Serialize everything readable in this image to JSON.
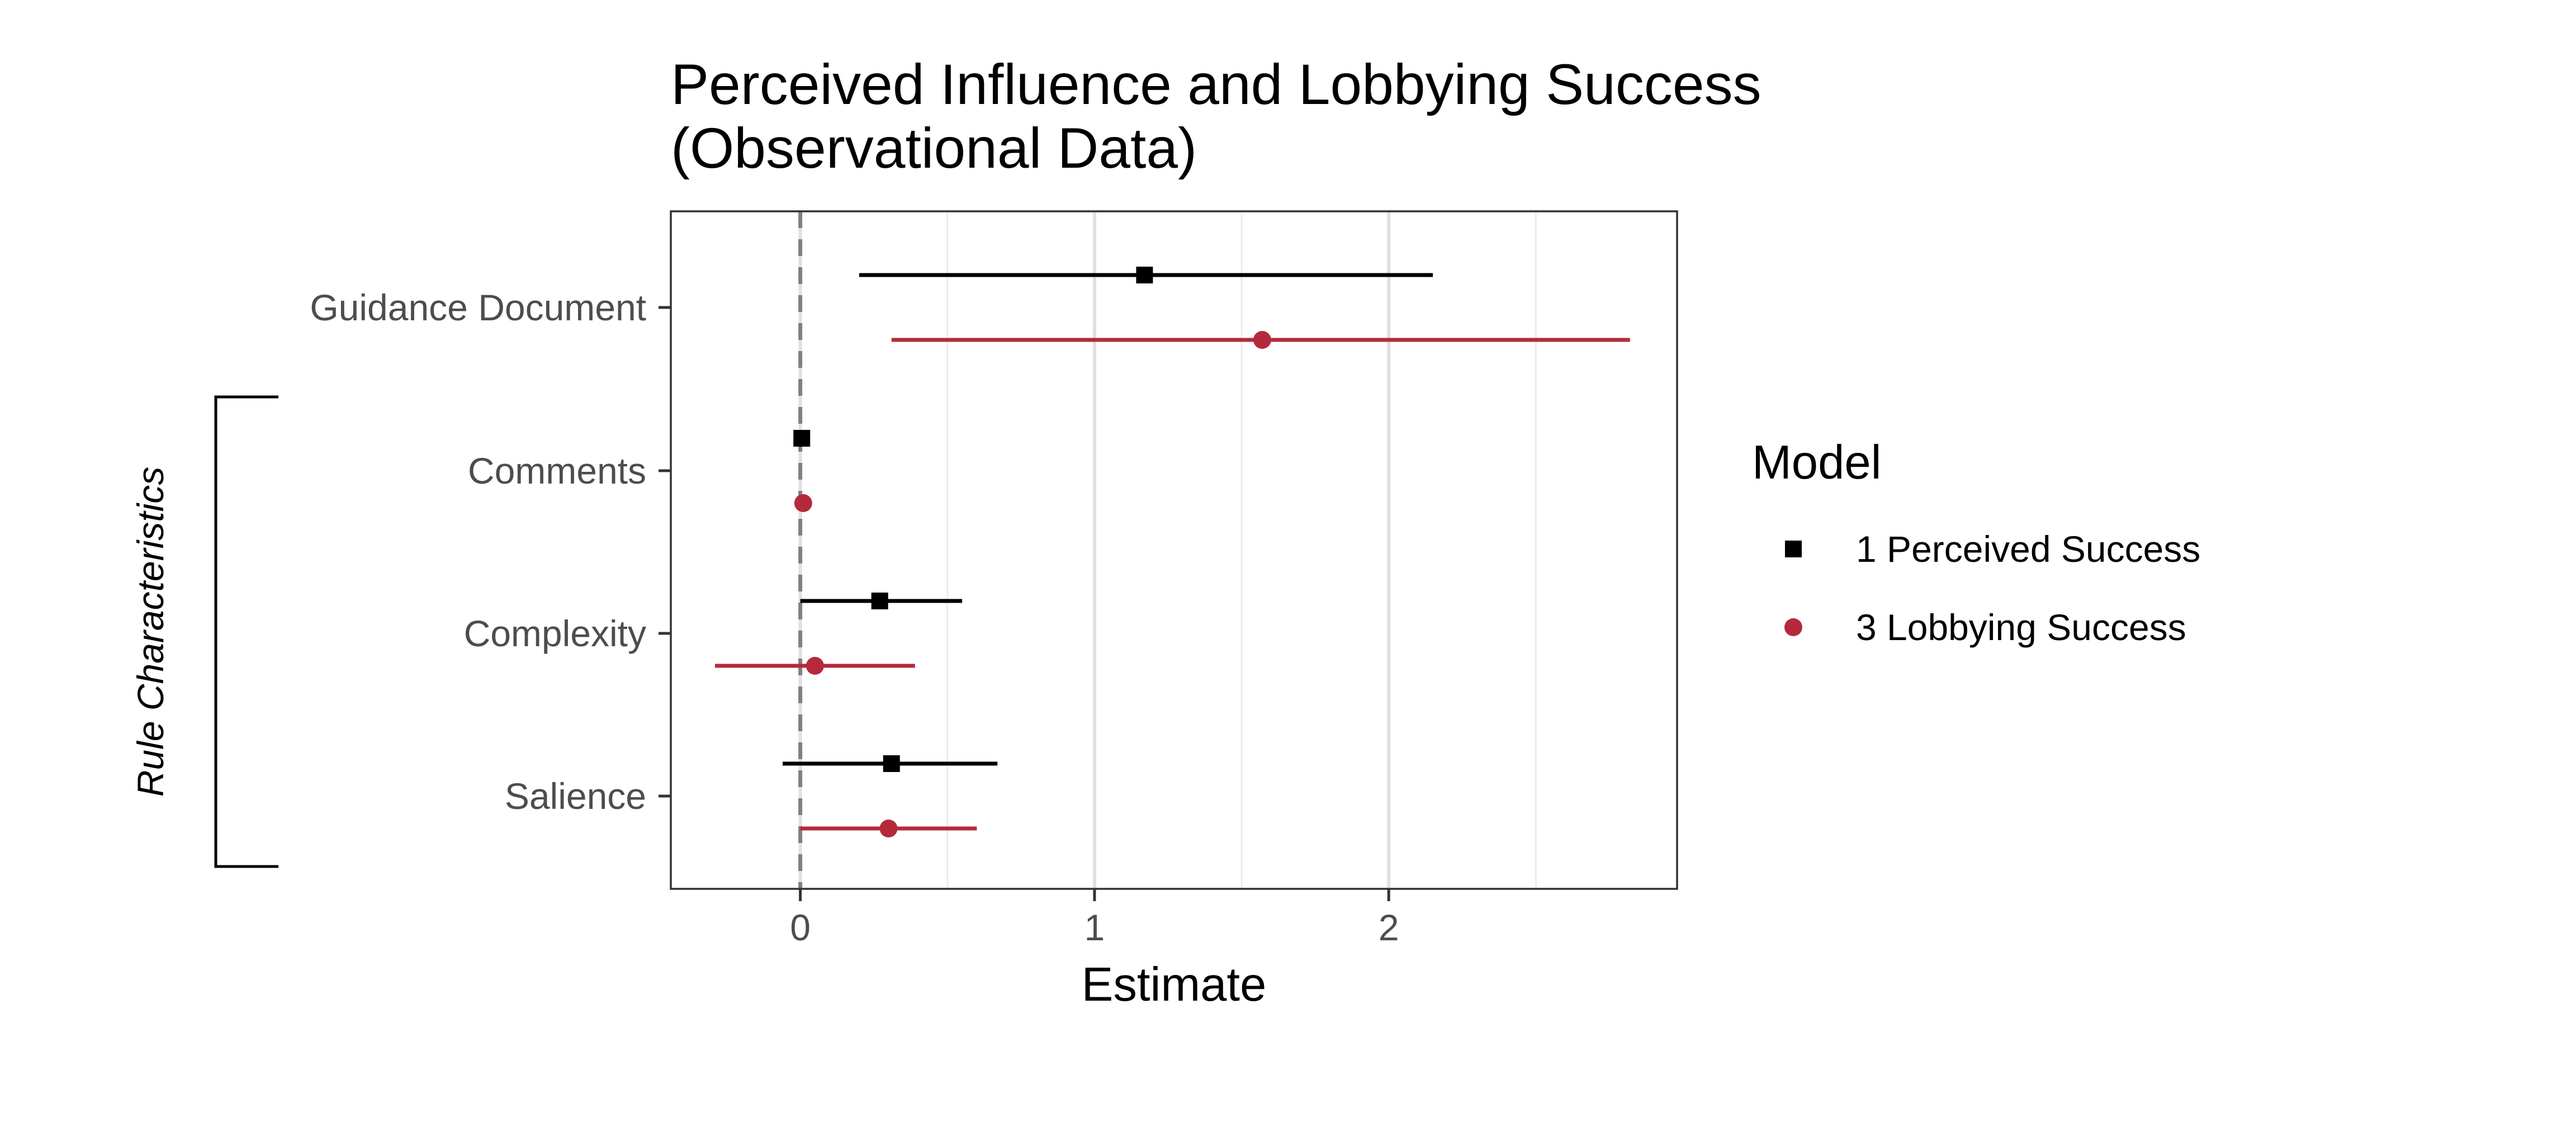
{
  "chart_data": {
    "type": "coefficient-plot",
    "title": "Perceived Influence and Lobbying Success",
    "subtitle": "(Observational Data)",
    "xlabel": "Estimate",
    "ylabel": "",
    "xlim": [
      -0.44,
      2.98
    ],
    "x_ticks": [
      0,
      1,
      2
    ],
    "x_tick_labels": [
      "0",
      "1",
      "2"
    ],
    "reference_line": 0,
    "grid": true,
    "categories": [
      "Guidance Document",
      "Comments",
      "Complexity",
      "Salience"
    ],
    "category_group": {
      "label": "Rule Characteristics",
      "members": [
        "Comments",
        "Complexity",
        "Salience"
      ]
    },
    "legend": {
      "title": "Model",
      "position": "right"
    },
    "series": [
      {
        "name": "1 Perceived Success",
        "color": "#000000",
        "marker": "square",
        "estimates": [
          1.17,
          0.005,
          0.27,
          0.31
        ],
        "lower": [
          0.2,
          0.0,
          0.0,
          -0.06
        ],
        "upper": [
          2.15,
          0.01,
          0.55,
          0.67
        ]
      },
      {
        "name": "3 Lobbying Success",
        "color": "#b52a3a",
        "marker": "circle",
        "estimates": [
          1.57,
          0.01,
          0.05,
          0.3
        ],
        "lower": [
          0.31,
          0.005,
          -0.29,
          0.0
        ],
        "upper": [
          2.82,
          0.015,
          0.39,
          0.6
        ]
      }
    ]
  }
}
